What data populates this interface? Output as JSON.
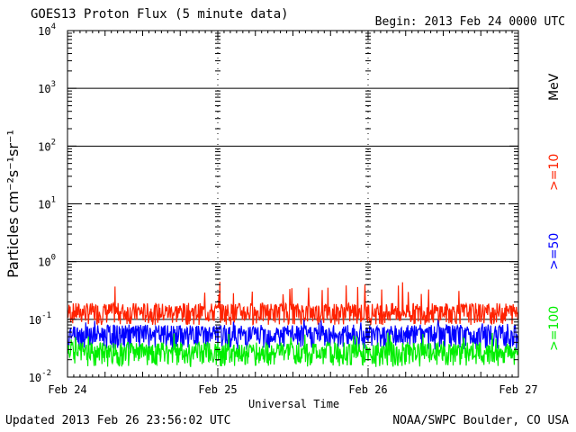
{
  "header": {
    "title": "GOES13 Proton Flux (5 minute data)",
    "begin": "Begin: 2013 Feb 24 0000 UTC"
  },
  "footer": {
    "updated": "Updated 2013 Feb 26 23:56:02 UTC",
    "credit": "NOAA/SWPC Boulder, CO USA"
  },
  "chart_data": {
    "type": "line",
    "title": "GOES13 Proton Flux (5 minute data)",
    "xlabel": "Universal Time",
    "ylabel": "Particles cm⁻²s⁻¹sr⁻¹",
    "y_scale": "log",
    "ylim": [
      0.01,
      10000
    ],
    "xlim": [
      "2013-02-24",
      "2013-02-27"
    ],
    "x_tick_labels": [
      "Feb 24",
      "Feb 25",
      "Feb 26",
      "Feb 27"
    ],
    "y_tick_labels": [
      {
        "base": "10",
        "exp": "-2"
      },
      {
        "base": "10",
        "exp": "-1"
      },
      {
        "base": "10",
        "exp": "0"
      },
      {
        "base": "10",
        "exp": "1"
      },
      {
        "base": "10",
        "exp": "2"
      },
      {
        "base": "10",
        "exp": "3"
      },
      {
        "base": "10",
        "exp": "4"
      }
    ],
    "unit_label": "MeV",
    "grid": true,
    "legend_position": "right",
    "series": [
      {
        "name": ">=10",
        "color": "#ff2200",
        "typical": 0.12,
        "range": [
          0.08,
          0.45
        ]
      },
      {
        "name": ">=50",
        "color": "#0000ff",
        "typical": 0.05,
        "range": [
          0.03,
          0.1
        ]
      },
      {
        "name": ">=100",
        "color": "#00ee00",
        "typical": 0.025,
        "range": [
          0.015,
          0.06
        ]
      }
    ]
  }
}
